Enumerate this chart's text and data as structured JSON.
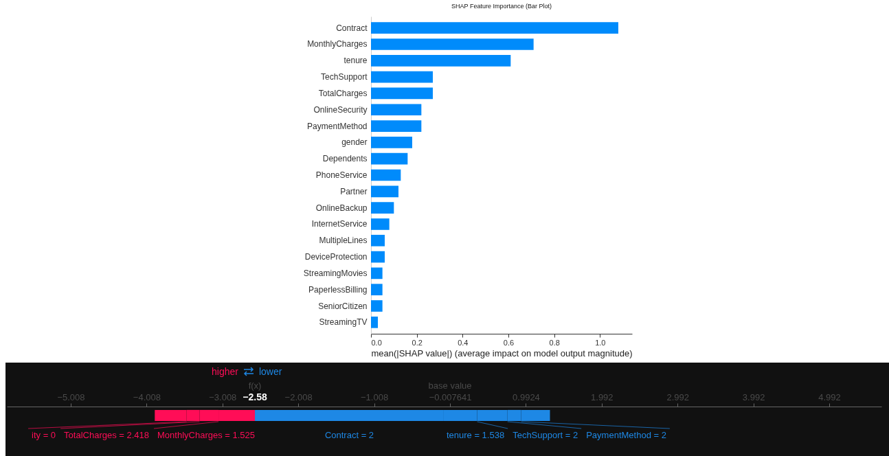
{
  "chart_data": [
    {
      "type": "bar",
      "orientation": "horizontal",
      "title": "SHAP Feature Importance (Bar Plot)",
      "xlabel": "mean(|SHAP value|) (average impact on model output magnitude)",
      "categories": [
        "Contract",
        "MonthlyCharges",
        "tenure",
        "TechSupport",
        "TotalCharges",
        "OnlineSecurity",
        "PaymentMethod",
        "gender",
        "Dependents",
        "PhoneService",
        "Partner",
        "OnlineBackup",
        "InternetService",
        "MultipleLines",
        "DeviceProtection",
        "StreamingMovies",
        "PaperlessBilling",
        "SeniorCitizen",
        "StreamingTV"
      ],
      "values": [
        1.08,
        0.71,
        0.61,
        0.27,
        0.27,
        0.22,
        0.22,
        0.18,
        0.16,
        0.13,
        0.12,
        0.1,
        0.08,
        0.06,
        0.06,
        0.05,
        0.05,
        0.05,
        0.03
      ],
      "color": "#008bfb",
      "xlim": [
        0,
        1.14
      ],
      "xticks": [
        {
          "value": 0,
          "label": "0.0"
        },
        {
          "value": 0.2,
          "label": "0.2"
        },
        {
          "value": 0.4,
          "label": "0.4"
        },
        {
          "value": 0.6,
          "label": "0.6"
        },
        {
          "value": 0.8,
          "label": "0.8"
        },
        {
          "value": 1,
          "label": "1.0"
        }
      ]
    },
    {
      "type": "bar",
      "orientation": "horizontal",
      "categories": [
        null
      ],
      "series": [
        {
          "name": "MonthlyCharges = 1.525",
          "color": "#ff0d57",
          "base": [
            -3.06
          ],
          "values": [
            0.48
          ]
        },
        {
          "name": "TotalCharges = 2.418",
          "color": "#ff0d57",
          "base": [
            -3.31
          ],
          "values": [
            0.25
          ]
        },
        {
          "name": "ity = 0",
          "color": "#ff0d57",
          "base": [
            -3.48
          ],
          "values": [
            0.17
          ]
        },
        {
          "color": "#ff0d57",
          "base": [
            -3.9
          ],
          "values": [
            0.42
          ]
        },
        {
          "name": "Contract = 2",
          "color": "#1e88e5",
          "base": [
            -2.58
          ],
          "values": [
            2.49
          ]
        },
        {
          "name": "tenure = 1.538",
          "color": "#1e88e5",
          "base": [
            -0.09
          ],
          "values": [
            0.44
          ]
        },
        {
          "name": "TechSupport = 2",
          "color": "#1e88e5",
          "base": [
            0.35
          ],
          "values": [
            0.4
          ]
        },
        {
          "name": "PaymentMethod = 2",
          "color": "#1e88e5",
          "base": [
            0.75
          ],
          "values": [
            0.18
          ]
        },
        {
          "color": "#1e88e5",
          "base": [
            0.93
          ],
          "values": [
            0.38
          ]
        }
      ],
      "xlim": [
        -5.85,
        5.68
      ],
      "xticks": [
        -5.008,
        -4.008,
        -3.008,
        -2.008,
        -1.008,
        -0.007641,
        0.9924,
        1.992,
        2.992,
        3.992,
        4.992
      ],
      "annotations": [
        "higher",
        "lower",
        "f(x)",
        "−2.58",
        "base value"
      ]
    }
  ]
}
